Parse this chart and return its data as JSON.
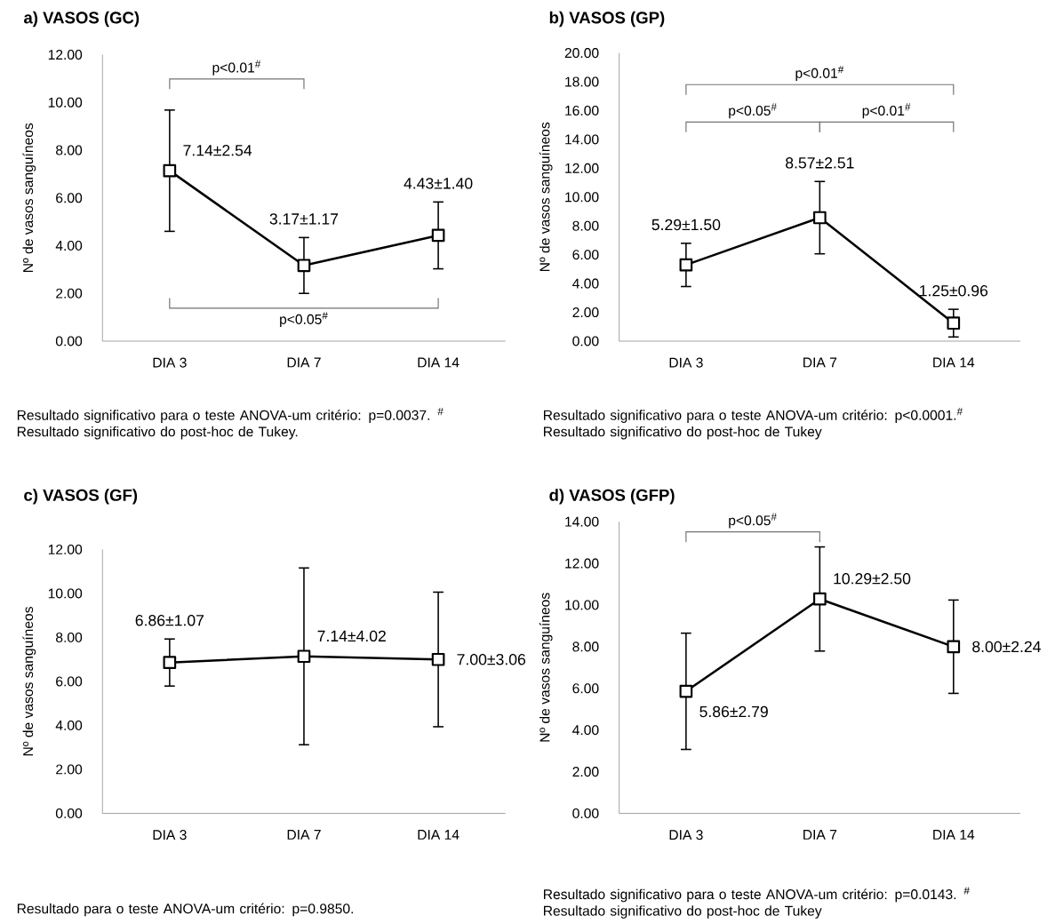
{
  "chart_data": [
    {
      "type": "line",
      "title": "a) VASOS (GC)",
      "ylabel": "Nº de vasos sanguíneos",
      "categories": [
        "DIA 3",
        "DIA 7",
        "DIA 14"
      ],
      "values": [
        7.14,
        3.17,
        4.43
      ],
      "errors": [
        2.54,
        1.17,
        1.4
      ],
      "value_labels": [
        "7.14±2.54",
        "3.17±1.17",
        "4.43±1.40"
      ],
      "color": "#000000",
      "marker": "square",
      "ylim": [
        0,
        12
      ],
      "yticks": [
        {
          "value": 0,
          "label": "0.00"
        },
        {
          "value": 2,
          "label": "2.00"
        },
        {
          "value": 4,
          "label": "4.00"
        },
        {
          "value": 6,
          "label": "6.00"
        },
        {
          "value": 8,
          "label": "8.00"
        },
        {
          "value": 10,
          "label": "10.00"
        },
        {
          "value": 12,
          "label": "12.00"
        }
      ],
      "annotations": [
        "p<0.01$^{#}$",
        "p<0.05$^{#}$",
        "Resultado  significativo para o teste ANOVA-um  critério: p=0.0037. $^{#}$ Resultado significativo do post-hoc de Tukey."
      ]
    },
    {
      "type": "line",
      "title": "b) VASOS (GP)",
      "ylabel": "Nº de vasos sanguíneos",
      "categories": [
        "DIA 3",
        "DIA 7",
        "DIA 14"
      ],
      "values": [
        5.29,
        8.57,
        1.25
      ],
      "errors": [
        1.5,
        2.51,
        0.96
      ],
      "value_labels": [
        "5.29±1.50",
        "8.57±2.51",
        "1.25±0.96"
      ],
      "color": "#000000",
      "marker": "square",
      "ylim": [
        0,
        20
      ],
      "yticks": [
        {
          "value": 0,
          "label": "0.00"
        },
        {
          "value": 2,
          "label": "2.00"
        },
        {
          "value": 4,
          "label": "4.00"
        },
        {
          "value": 6,
          "label": "6.00"
        },
        {
          "value": 8,
          "label": "8.00"
        },
        {
          "value": 10,
          "label": "10.00"
        },
        {
          "value": 12,
          "label": "12.00"
        },
        {
          "value": 14,
          "label": "14.00"
        },
        {
          "value": 16,
          "label": "16.00"
        },
        {
          "value": 18,
          "label": "18.00"
        },
        {
          "value": 20,
          "label": "20.00"
        }
      ],
      "annotations": [
        "p<0.01$^{#}$",
        "p<0.05$^{#}$",
        "p<0.01$^{#}$",
        "Resultado  significativo para o teste ANOVA-um  critério: p<0.0001.$^{#}$ Resultado significativo do post-hoc de Tukey"
      ]
    },
    {
      "type": "line",
      "title": "c) VASOS (GF)",
      "ylabel": "Nº de vasos sanguíneos",
      "categories": [
        "DIA 3",
        "DIA 7",
        "DIA 14"
      ],
      "values": [
        6.86,
        7.14,
        7.0
      ],
      "errors": [
        1.07,
        4.02,
        3.06
      ],
      "value_labels": [
        "6.86±1.07",
        "7.14±4.02",
        "7.00±3.06"
      ],
      "color": "#000000",
      "marker": "square",
      "ylim": [
        0,
        12
      ],
      "yticks": [
        {
          "value": 0,
          "label": "0.00"
        },
        {
          "value": 2,
          "label": "2.00"
        },
        {
          "value": 4,
          "label": "4.00"
        },
        {
          "value": 6,
          "label": "6.00"
        },
        {
          "value": 8,
          "label": "8.00"
        },
        {
          "value": 10,
          "label": "10.00"
        },
        {
          "value": 12,
          "label": "12.00"
        }
      ],
      "annotations": [
        "Resultado  para o teste ANOVA-um  critério: p=0.9850."
      ]
    },
    {
      "type": "line",
      "title": "d) VASOS (GFP)",
      "ylabel": "Nº de vasos sanguíneos",
      "categories": [
        "DIA 3",
        "DIA 7",
        "DIA 14"
      ],
      "values": [
        5.86,
        10.29,
        8.0
      ],
      "errors": [
        2.79,
        2.5,
        2.24
      ],
      "value_labels": [
        "5.86±2.79",
        "10.29±2.50",
        "8.00±2.24"
      ],
      "color": "#000000",
      "marker": "square",
      "ylim": [
        0,
        14
      ],
      "yticks": [
        {
          "value": 0,
          "label": "0.00"
        },
        {
          "value": 2,
          "label": "2.00"
        },
        {
          "value": 4,
          "label": "4.00"
        },
        {
          "value": 6,
          "label": "6.00"
        },
        {
          "value": 8,
          "label": "8.00"
        },
        {
          "value": 10,
          "label": "10.00"
        },
        {
          "value": 12,
          "label": "12.00"
        },
        {
          "value": 14,
          "label": "14.00"
        }
      ],
      "annotations": [
        "p<0.05$^{#}$",
        "Resultado  significativo para o teste ANOVA-um  critério: p=0.0143. $^{#}$ Resultado significativo do post-hoc de Tukey"
      ]
    }
  ]
}
